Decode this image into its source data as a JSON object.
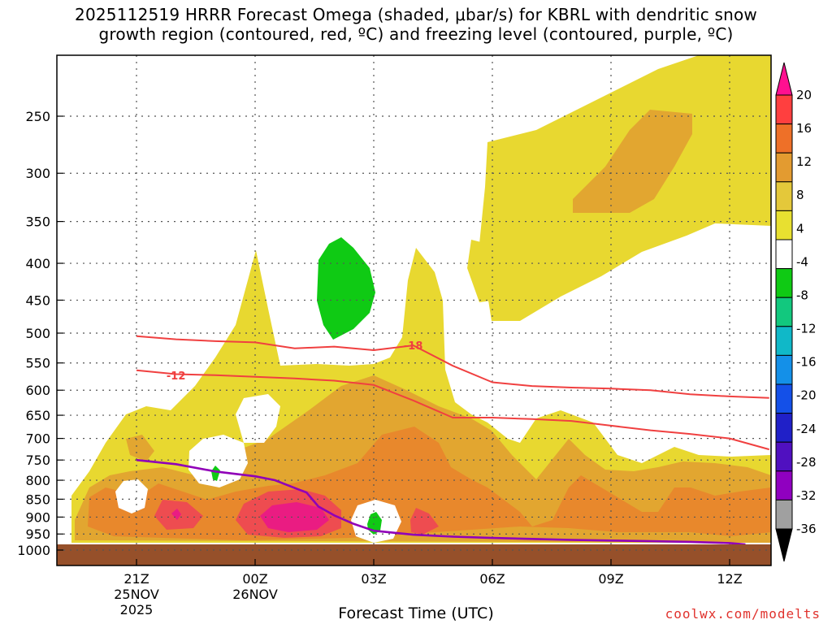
{
  "title_line1": "2025112519 HRRR Forecast Omega (shaded, μbar/s) for KBRL with dendritic snow",
  "title_line2": "growth region (contoured, red, ºC) and freezing level (contoured, purple, ºC)",
  "credit": "coolwx.com/modelts",
  "colors": {
    "omega_4_8": "#e8d830",
    "omega_8_12": "#e2a630",
    "omega_12_16": "#e8882c",
    "omega_16_20": "#ee4c50",
    "omega_gt20": "#ea1c82",
    "omega_neg4_neg8": "#0fca14",
    "ground": "#96502a",
    "dgz_contour": "#f04040",
    "freezing_level": "#9000b8"
  },
  "chart_data": {
    "type": "heatmap",
    "title": "2025112519 HRRR Forecast Omega (shaded, μbar/s) for KBRL with dendritic snow growth region (contoured, red, ºC) and freezing level (contoured, purple, ºC)",
    "xlabel": "Forecast Time (UTC)",
    "ylabel": "",
    "x_ticks": [
      {
        "label": "21Z",
        "sub": [
          "25NOV",
          "2025"
        ]
      },
      {
        "label": "00Z",
        "sub": [
          "26NOV"
        ]
      },
      {
        "label": "03Z",
        "sub": []
      },
      {
        "label": "06Z",
        "sub": []
      },
      {
        "label": "09Z",
        "sub": []
      },
      {
        "label": "12Z",
        "sub": []
      }
    ],
    "y_ticks": [
      250,
      300,
      350,
      400,
      450,
      500,
      550,
      600,
      650,
      700,
      750,
      800,
      850,
      900,
      950,
      1000
    ],
    "y_scale": "log-pressure",
    "grid": true,
    "colorbar": {
      "labels": [
        "20",
        "16",
        "12",
        "8",
        "4",
        "-4",
        "-8",
        "-12",
        "-16",
        "-20",
        "-24",
        "-28",
        "-32",
        "-36"
      ],
      "colors": [
        "#ff1090",
        "#ff3f3f",
        "#ee7028",
        "#e39b30",
        "#e4c83a",
        "#e8e030",
        "#ffffff",
        "#0fca14",
        "#12c87e",
        "#10b8c8",
        "#1490e8",
        "#1450e8",
        "#2020c8",
        "#5010c0",
        "#9000c0",
        "#a0a0a0",
        "#000000"
      ]
    },
    "contour_labels": [
      "-12",
      "-18"
    ],
    "series": [
      {
        "name": "-12",
        "x": [
          -3,
          -2,
          -1,
          0,
          1,
          2,
          3,
          4,
          5,
          6,
          7,
          8,
          9,
          10,
          11,
          12,
          13
        ],
        "y": [
          563,
          570,
          572,
          575,
          578,
          582,
          590,
          620,
          655,
          655,
          658,
          662,
          672,
          682,
          690,
          700,
          725
        ]
      },
      {
        "name": "-18",
        "x": [
          -3,
          -2,
          -1,
          0,
          1,
          2,
          3,
          4,
          5,
          6,
          7,
          8,
          9,
          10,
          11,
          12,
          13
        ],
        "y": [
          505,
          510,
          513,
          515,
          525,
          522,
          528,
          520,
          555,
          585,
          592,
          595,
          597,
          600,
          608,
          612,
          615
        ]
      },
      {
        "name": "",
        "x": [
          -3,
          -2,
          -1,
          0,
          0.5,
          1,
          1.3,
          1.6,
          2,
          2.5,
          3,
          4,
          5,
          6,
          7,
          8,
          9,
          10,
          11,
          12,
          12.4
        ],
        "y": [
          750,
          760,
          778,
          790,
          800,
          820,
          832,
          870,
          895,
          920,
          940,
          952,
          958,
          962,
          965,
          968,
          970,
          972,
          974,
          978,
          982
        ]
      }
    ]
  }
}
